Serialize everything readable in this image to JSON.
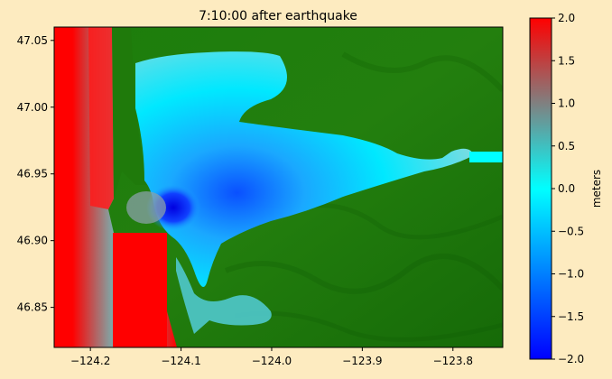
{
  "chart_data": {
    "type": "heatmap",
    "title": "7:10:00 after earthquake",
    "xlabel": "",
    "ylabel": "",
    "xlim": [
      -124.24,
      -123.745
    ],
    "ylim": [
      46.82,
      47.06
    ],
    "x_ticks": [
      {
        "value": -124.2,
        "label": "−124.2"
      },
      {
        "value": -124.1,
        "label": "−124.1"
      },
      {
        "value": -124.0,
        "label": "−124.0"
      },
      {
        "value": -123.9,
        "label": "−123.9"
      },
      {
        "value": -123.8,
        "label": "−123.8"
      }
    ],
    "y_ticks": [
      {
        "value": 47.05,
        "label": "47.05"
      },
      {
        "value": 47.0,
        "label": "47.00"
      },
      {
        "value": 46.95,
        "label": "46.95"
      },
      {
        "value": 46.9,
        "label": "46.90"
      },
      {
        "value": 46.85,
        "label": "46.85"
      }
    ],
    "colorbar": {
      "label": "meters",
      "range": [
        -2.0,
        2.0
      ],
      "ticks": [
        {
          "value": 2.0,
          "label": "2.0"
        },
        {
          "value": 1.5,
          "label": "1.5"
        },
        {
          "value": 1.0,
          "label": "1.0"
        },
        {
          "value": 0.5,
          "label": "0.5"
        },
        {
          "value": 0.0,
          "label": "0.0"
        },
        {
          "value": -0.5,
          "label": "−0.5"
        },
        {
          "value": -1.0,
          "label": "−1.0"
        },
        {
          "value": -1.5,
          "label": "−1.5"
        },
        {
          "value": -2.0,
          "label": "−2.0"
        }
      ],
      "stops": [
        {
          "value": -2.0,
          "color": "#0000ff"
        },
        {
          "value": 0.0,
          "color": "#00ffff"
        },
        {
          "value": 1.0,
          "color": "#808080"
        },
        {
          "value": 2.0,
          "color": "#ff0000"
        }
      ]
    },
    "land_color": "#1f7a0b",
    "background_color": "#fdebc0"
  }
}
